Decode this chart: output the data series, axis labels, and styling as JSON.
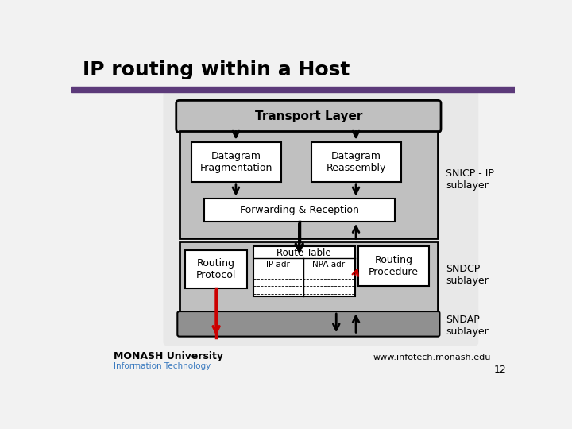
{
  "title": "IP routing within a Host",
  "title_fontsize": 18,
  "title_fontweight": "bold",
  "slide_bg": "#f2f2f2",
  "white": "#ffffff",
  "black": "#000000",
  "red": "#cc0000",
  "gray_bg": "#c0c0c0",
  "gray_medium": "#b0b0b0",
  "gray_dark": "#909090",
  "purple_bar_color": "#5c3a7a",
  "footer_text": "www.infotech.monash.edu",
  "page_number": "12",
  "snicp_label": "SNICP - IP\nsublayer",
  "sndcp_label": "SNDCP\nsublayer",
  "sndap_label": "SNDAP\nsublayer",
  "transport_label": "Transport Layer",
  "datagram_frag_label": "Datagram\nFragmentation",
  "datagram_reass_label": "Datagram\nReassembly",
  "forwarding_label": "Forwarding & Reception",
  "routing_protocol_label": "Routing\nProtocol",
  "route_table_label": "Route Table",
  "ip_adr_label": "IP adr",
  "npa_adr_label": "NPA adr",
  "routing_proc_label": "Routing\nProcedure",
  "monash_text": "MONASH University",
  "it_text": "Information Technology"
}
